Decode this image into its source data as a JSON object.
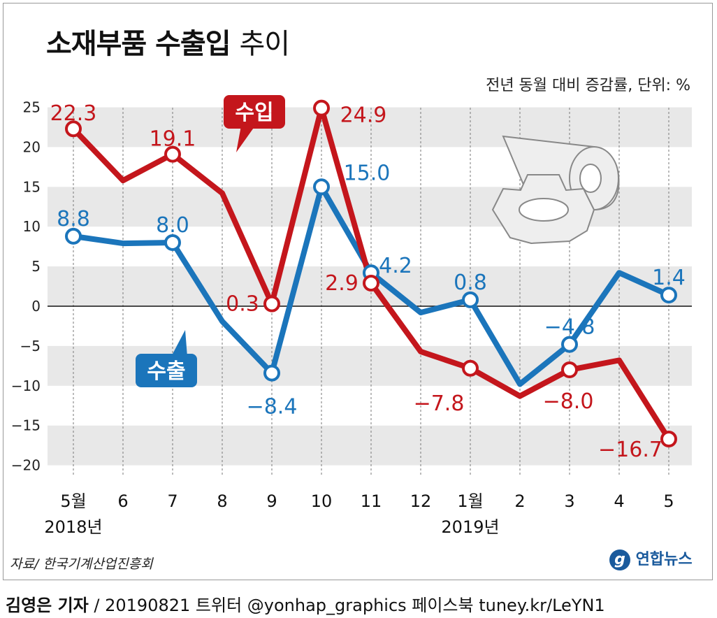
{
  "title": {
    "bold": "소재부품 수출입",
    "light": "추이"
  },
  "unit_note": "전년 동월 대비 증감률, 단위: %",
  "source": "자료/ 한국기계산업진흥회",
  "logo": "연합뉴스",
  "footer": {
    "author": "김영은 기자",
    "rest": "/ 20190821  트위터 @yonhap_graphics  페이스북 tuney.kr/LeYN1"
  },
  "colors": {
    "import": "#c4161c",
    "export": "#1b75bb",
    "band": "#e8e8e8"
  },
  "chart_data": {
    "type": "line",
    "categories": [
      "5월",
      "6",
      "7",
      "8",
      "9",
      "10",
      "11",
      "12",
      "1월",
      "2",
      "3",
      "4",
      "5"
    ],
    "year_labels": [
      {
        "index": 0,
        "label": "2018년"
      },
      {
        "index": 8,
        "label": "2019년"
      }
    ],
    "ylim": [
      -20,
      25
    ],
    "yticks": [
      25,
      20,
      15,
      10,
      5,
      0,
      -5,
      -10,
      -15,
      -20
    ],
    "series": [
      {
        "name": "수입",
        "color": "#c4161c",
        "values": [
          22.3,
          15.8,
          19.1,
          14.2,
          0.3,
          24.9,
          2.9,
          -5.7,
          -7.8,
          -11.3,
          -8.0,
          -6.8,
          -16.7
        ],
        "labels": {
          "0": "22.3",
          "2": "19.1",
          "4": "0.3",
          "5": "24.9",
          "6": "2.9",
          "8": "−7.8",
          "10": "−8.0",
          "12": "−16.7"
        }
      },
      {
        "name": "수출",
        "color": "#1b75bb",
        "values": [
          8.8,
          7.9,
          8.0,
          -1.9,
          -8.4,
          15.0,
          4.2,
          -0.8,
          0.8,
          -9.8,
          -4.8,
          4.2,
          1.4
        ],
        "labels": {
          "0": "8.8",
          "2": "8.0",
          "4": "−8.4",
          "5": "15.0",
          "6": "4.2",
          "8": "0.8",
          "10": "−4.8",
          "12": "1.4"
        }
      }
    ]
  }
}
